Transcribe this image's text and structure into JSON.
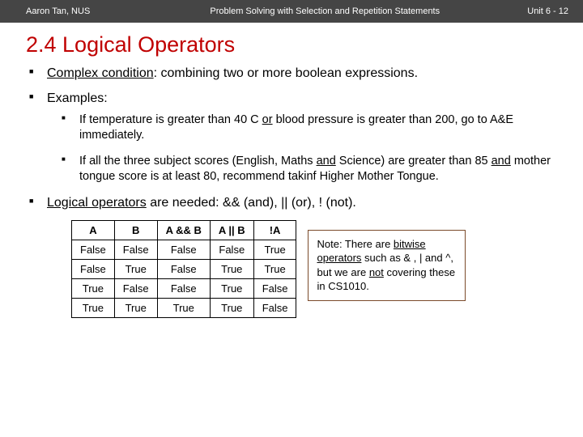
{
  "header": {
    "left": "Aaron Tan, NUS",
    "center": "Problem Solving with Selection and Repetition Statements",
    "right": "Unit 6 - 12"
  },
  "title": "2.4 Logical Operators",
  "bullets": {
    "b1_part1": "Complex condition",
    "b1_part2": ": combining two or more boolean expressions.",
    "b2": "Examples:",
    "b2a_pre": "If temperature is greater than 40 C ",
    "b2a_or": "or",
    "b2a_post": " blood pressure is greater than 200, go to A&E immediately.",
    "b2b_pre": "If all the three subject scores (English, Maths ",
    "b2b_and1": "and",
    "b2b_mid": " Science) are greater than 85 ",
    "b2b_and2": "and",
    "b2b_post": " mother tongue score is at least 80, recommend takinf Higher Mother Tongue.",
    "b3_pre": "Logical operators",
    "b3_post": " are needed: && (and), || (or), ! (not)."
  },
  "truth_table": {
    "headers": [
      "A",
      "B",
      "A && B",
      "A || B",
      "!A"
    ],
    "rows": [
      [
        "False",
        "False",
        "False",
        "False",
        "True"
      ],
      [
        "False",
        "True",
        "False",
        "True",
        "True"
      ],
      [
        "True",
        "False",
        "False",
        "True",
        "False"
      ],
      [
        "True",
        "True",
        "True",
        "True",
        "False"
      ]
    ]
  },
  "note": {
    "p1": "Note: There are ",
    "p2": "bitwise operators",
    "p3": " such as & , | and ^, but we are ",
    "p4": "not",
    "p5": " covering these in CS1010."
  },
  "colors": {
    "header_bg": "#454545",
    "title_color": "#c00000",
    "note_border": "#7a4a2a"
  }
}
